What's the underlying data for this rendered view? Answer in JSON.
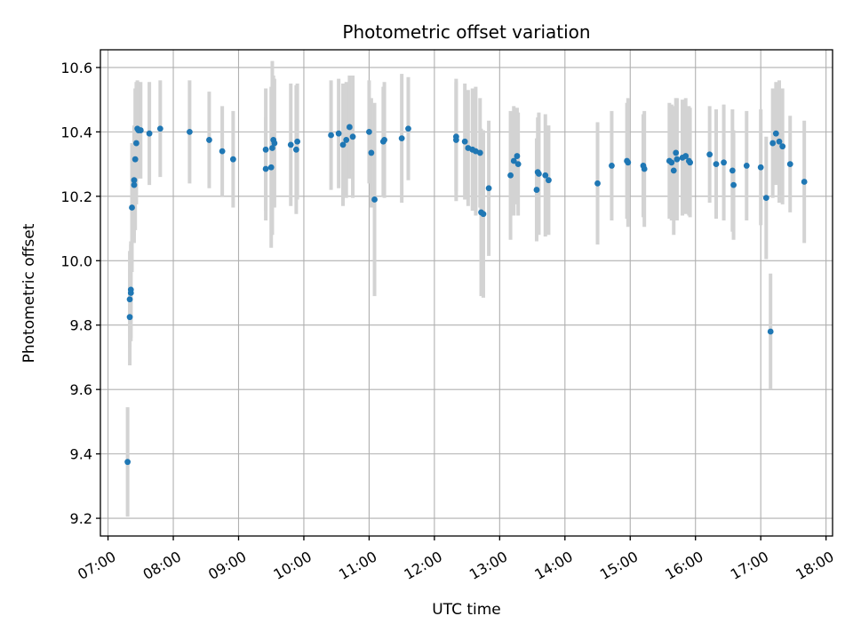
{
  "chart_data": {
    "type": "scatter",
    "title": "Photometric offset variation",
    "xlabel": "UTC time",
    "ylabel": "Photometric offset",
    "xlim": [
      "06:53",
      "18:06"
    ],
    "ylim": [
      9.145,
      10.655
    ],
    "grid": true,
    "x_ticks": [
      "07:00",
      "08:00",
      "09:00",
      "10:00",
      "11:00",
      "12:00",
      "13:00",
      "14:00",
      "15:00",
      "16:00",
      "17:00",
      "18:00"
    ],
    "y_ticks": [
      9.2,
      9.4,
      9.6,
      9.8,
      10.0,
      10.2,
      10.4,
      10.6
    ],
    "y_tick_labels": [
      "9.2",
      "9.4",
      "9.6",
      "9.8",
      "10.0",
      "10.2",
      "10.4",
      "10.6"
    ],
    "colors": {
      "point": "#1f77b4",
      "errorbar": "#d3d3d3",
      "grid": "#b0b0b0"
    },
    "series": [
      {
        "x": [
          "07:18",
          "07:20",
          "07:20",
          "07:21",
          "07:21",
          "07:22",
          "07:24",
          "07:24",
          "07:25",
          "07:26",
          "07:27",
          "07:28",
          "07:30",
          "07:38",
          "07:48",
          "08:15",
          "08:33",
          "08:45",
          "08:55",
          "09:25",
          "09:25",
          "09:30",
          "09:31",
          "09:32",
          "09:33",
          "09:48",
          "09:53",
          "09:54",
          "10:25",
          "10:32",
          "10:36",
          "10:39",
          "10:42",
          "10:45",
          "11:00",
          "11:02",
          "11:05",
          "11:13",
          "11:14",
          "11:30",
          "11:36",
          "12:20",
          "12:20",
          "12:28",
          "12:31",
          "12:35",
          "12:38",
          "12:42",
          "12:43",
          "12:45",
          "12:50",
          "13:10",
          "13:13",
          "13:16",
          "13:17",
          "13:34",
          "13:35",
          "13:36",
          "13:42",
          "13:45",
          "14:30",
          "14:43",
          "14:57",
          "14:58",
          "15:12",
          "15:13",
          "15:36",
          "15:38",
          "15:40",
          "15:42",
          "15:43",
          "15:48",
          "15:51",
          "15:54",
          "15:55",
          "16:13",
          "16:19",
          "16:26",
          "16:34",
          "16:35",
          "16:47",
          "17:00",
          "17:05",
          "17:09",
          "17:11",
          "17:14",
          "17:17",
          "17:20",
          "17:27",
          "17:40"
        ],
        "y": [
          9.375,
          9.825,
          9.88,
          9.9,
          9.91,
          10.165,
          10.235,
          10.25,
          10.315,
          10.365,
          10.41,
          10.405,
          10.405,
          10.395,
          10.41,
          10.4,
          10.375,
          10.34,
          10.315,
          10.345,
          10.285,
          10.29,
          10.35,
          10.375,
          10.365,
          10.36,
          10.345,
          10.37,
          10.39,
          10.395,
          10.36,
          10.375,
          10.415,
          10.385,
          10.4,
          10.335,
          10.19,
          10.37,
          10.375,
          10.38,
          10.41,
          10.375,
          10.385,
          10.37,
          10.35,
          10.345,
          10.34,
          10.335,
          10.15,
          10.145,
          10.225,
          10.265,
          10.31,
          10.325,
          10.3,
          10.22,
          10.275,
          10.27,
          10.265,
          10.25,
          10.24,
          10.295,
          10.31,
          10.305,
          10.295,
          10.285,
          10.31,
          10.305,
          10.28,
          10.335,
          10.315,
          10.32,
          10.325,
          10.31,
          10.305,
          10.33,
          10.3,
          10.305,
          10.28,
          10.235,
          10.295,
          10.29,
          10.195,
          9.78,
          10.365,
          10.395,
          10.37,
          10.355,
          10.3,
          10.245
        ],
        "yerr": [
          0.17,
          0.15,
          0.15,
          0.15,
          0.15,
          0.2,
          0.18,
          0.17,
          0.22,
          0.19,
          0.15,
          0.15,
          0.15,
          0.16,
          0.15,
          0.16,
          0.15,
          0.14,
          0.15,
          0.19,
          0.16,
          0.25,
          0.27,
          0.2,
          0.2,
          0.19,
          0.2,
          0.18,
          0.17,
          0.17,
          0.19,
          0.18,
          0.16,
          0.19,
          0.16,
          0.17,
          0.3,
          0.17,
          0.18,
          0.2,
          0.16,
          0.19,
          0.17,
          0.18,
          0.18,
          0.19,
          0.2,
          0.17,
          0.26,
          0.26,
          0.21,
          0.2,
          0.17,
          0.15,
          0.16,
          0.16,
          0.17,
          0.19,
          0.19,
          0.17,
          0.19,
          0.17,
          0.18,
          0.2,
          0.16,
          0.18,
          0.18,
          0.18,
          0.2,
          0.17,
          0.19,
          0.18,
          0.18,
          0.17,
          0.17,
          0.15,
          0.17,
          0.18,
          0.19,
          0.17,
          0.17,
          0.18,
          0.19,
          0.18,
          0.17,
          0.16,
          0.19,
          0.18,
          0.15,
          0.19
        ]
      }
    ]
  }
}
